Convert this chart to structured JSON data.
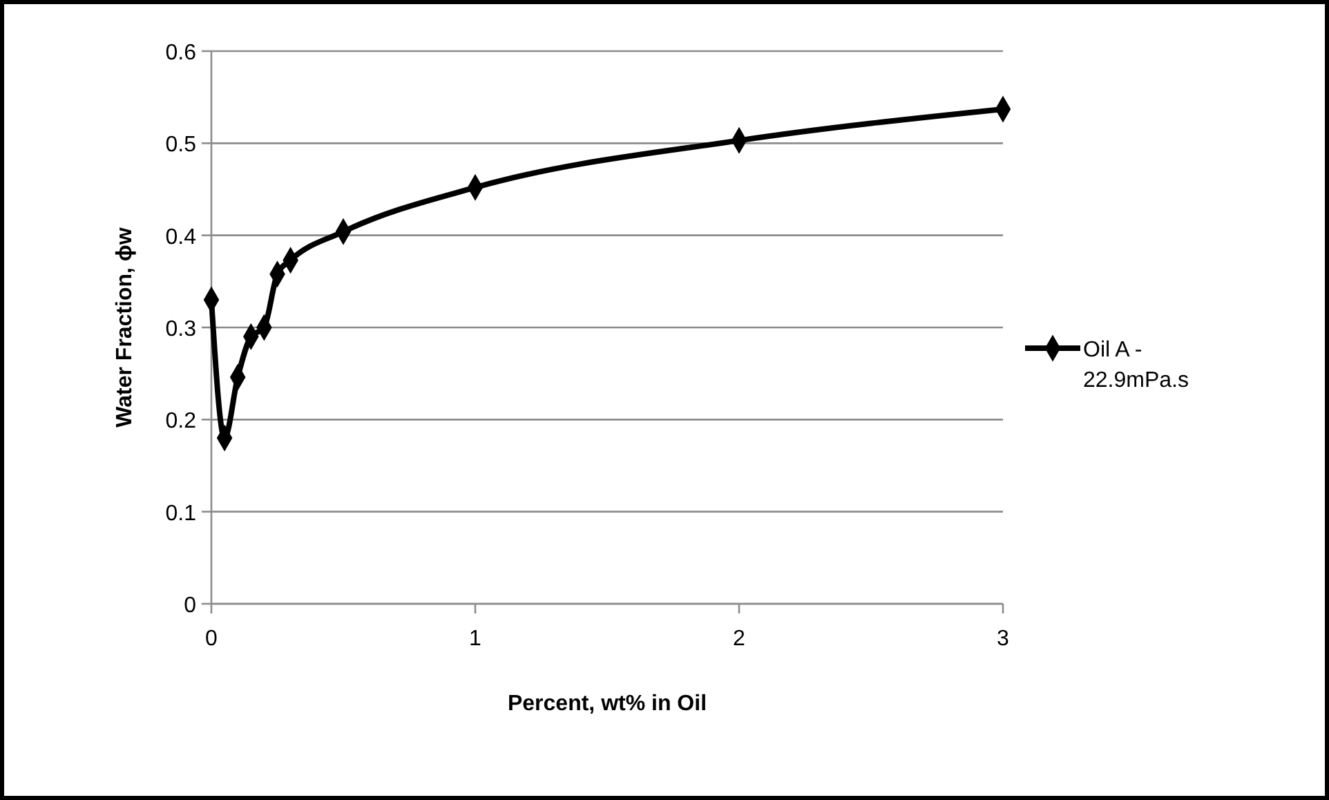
{
  "chart_data": {
    "type": "line",
    "xlabel": "Percent, wt% in Oil",
    "ylabel": "Water Fraction, ϕw",
    "xlim": [
      0,
      3
    ],
    "xticks": [
      0,
      1,
      2,
      3
    ],
    "ylim": [
      0,
      0.6
    ],
    "yticks": [
      0,
      0.1,
      0.2,
      0.3,
      0.4,
      0.5,
      0.6
    ],
    "grid": "y",
    "legend": "right",
    "marker": "diamond",
    "line_style": "solid",
    "series": [
      {
        "name": "Oil A - 22.9mPa.s",
        "color": "#000000",
        "x": [
          0,
          0.05,
          0.1,
          0.15,
          0.2,
          0.25,
          0.3,
          0.5,
          1,
          2,
          3
        ],
        "values": [
          0.33,
          0.18,
          0.246,
          0.29,
          0.3,
          0.358,
          0.373,
          0.404,
          0.452,
          0.503,
          0.537
        ]
      }
    ]
  }
}
